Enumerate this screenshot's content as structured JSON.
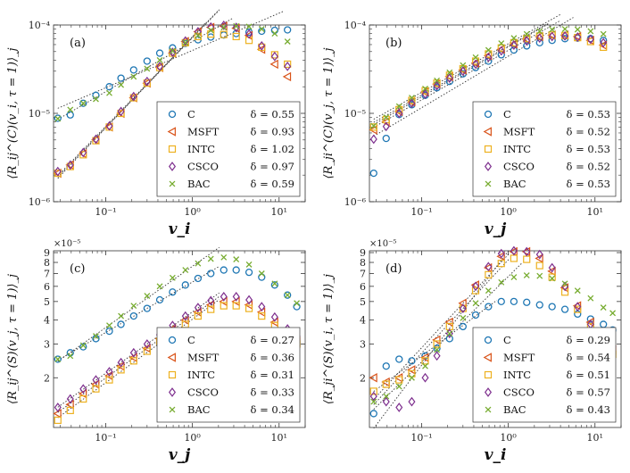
{
  "series_styles": [
    {
      "name": "C",
      "marker": "circle",
      "color": "#1f77b4"
    },
    {
      "name": "MSFT",
      "marker": "triangle-left",
      "color": "#d95319"
    },
    {
      "name": "INTC",
      "marker": "square",
      "color": "#edb120"
    },
    {
      "name": "CSCO",
      "marker": "diamond",
      "color": "#7e2f8e"
    },
    {
      "name": "BAC",
      "marker": "x",
      "color": "#77ac30"
    }
  ],
  "chart_data": [
    {
      "type": "scatter",
      "panel_label": "(a)",
      "xlabel": "v_i",
      "ylabel": "⟨R_ij^(C)(v_i, τ = 1)⟩_j",
      "xscale": "log",
      "yscale": "log",
      "xlim": [
        0.025,
        20
      ],
      "ylim": [
        1e-06,
        0.0001
      ],
      "x_ticks": [
        0.1,
        1,
        10
      ],
      "x_tick_labels": [
        "10⁻¹",
        "10⁰",
        "10¹"
      ],
      "y_ticks": [
        1e-06,
        1e-05,
        0.0001
      ],
      "y_tick_labels": [
        "10⁻⁶",
        "10⁻⁵",
        "10⁻⁴"
      ],
      "legend_position": "bottom-right",
      "exponent_label": "",
      "x": [
        0.028,
        0.039,
        0.055,
        0.077,
        0.11,
        0.15,
        0.21,
        0.3,
        0.42,
        0.59,
        0.83,
        1.16,
        1.63,
        2.3,
        3.2,
        4.5,
        6.3,
        8.9,
        12.5
      ],
      "series": [
        {
          "name": "C",
          "delta_label": "δ = 0.55",
          "values": [
            8.8e-06,
            9.6e-06,
            1.3e-05,
            1.6e-05,
            2e-05,
            2.5e-05,
            3.1e-05,
            3.9e-05,
            4.8e-05,
            5.5e-05,
            6.2e-05,
            6.8e-05,
            7.3e-05,
            7.7e-05,
            8e-05,
            8.3e-05,
            8.5e-05,
            8.7e-05,
            8.8e-05
          ]
        },
        {
          "name": "MSFT",
          "delta_label": "δ = 0.93",
          "values": [
            2.1e-06,
            2.6e-06,
            3.5e-06,
            5e-06,
            7e-06,
            1e-05,
            1.5e-05,
            2.2e-05,
            3.3e-05,
            4.8e-05,
            6.5e-05,
            8.4e-05,
            9.4e-05,
            9.7e-05,
            9.2e-05,
            7.6e-05,
            5.3e-05,
            3.6e-05,
            2.6e-05
          ]
        },
        {
          "name": "INTC",
          "delta_label": "δ = 1.02",
          "values": [
            2.1e-06,
            2.5e-06,
            3.4e-06,
            4.9e-06,
            7e-06,
            1e-05,
            1.5e-05,
            2.2e-05,
            3.3e-05,
            4.8e-05,
            6.3e-05,
            7.4e-05,
            7.9e-05,
            7.8e-05,
            7.4e-05,
            6.7e-05,
            5.6e-05,
            4.6e-05,
            3.6e-05
          ]
        },
        {
          "name": "CSCO",
          "delta_label": "δ = 0.97",
          "values": [
            2.2e-06,
            2.6e-06,
            3.6e-06,
            5.1e-06,
            7.2e-06,
            1.05e-05,
            1.55e-05,
            2.3e-05,
            3.4e-05,
            4.9e-05,
            6.6e-05,
            8.4e-05,
            9.5e-05,
            9.9e-05,
            9.4e-05,
            7.9e-05,
            5.8e-05,
            4.4e-05,
            3.4e-05
          ]
        },
        {
          "name": "BAC",
          "delta_label": "δ = 0.59",
          "values": [
            8.7e-06,
            1.1e-05,
            1.3e-05,
            1.45e-05,
            1.7e-05,
            2.1e-05,
            2.6e-05,
            3.2e-05,
            4e-05,
            5.1e-05,
            6.3e-05,
            7.6e-05,
            8.7e-05,
            9.4e-05,
            9.7e-05,
            9.6e-05,
            9e-05,
            8e-05,
            6.5e-05
          ]
        }
      ]
    },
    {
      "type": "scatter",
      "panel_label": "(b)",
      "xlabel": "v_j",
      "ylabel": "⟨R_ji^(C)(v_j, τ = 1)⟩_j",
      "xscale": "log",
      "yscale": "log",
      "xlim": [
        0.025,
        20
      ],
      "ylim": [
        1e-06,
        0.0001
      ],
      "x_ticks": [
        0.1,
        1,
        10
      ],
      "x_tick_labels": [
        "10⁻¹",
        "10⁰",
        "10¹"
      ],
      "y_ticks": [
        1e-06,
        1e-05,
        0.0001
      ],
      "y_tick_labels": [
        "10⁻⁶",
        "10⁻⁵",
        "10⁻⁴"
      ],
      "legend_position": "bottom-right",
      "exponent_label": "",
      "x": [
        0.028,
        0.039,
        0.055,
        0.077,
        0.11,
        0.15,
        0.21,
        0.3,
        0.42,
        0.59,
        0.83,
        1.16,
        1.63,
        2.3,
        3.2,
        4.5,
        6.3,
        8.9,
        12.5
      ],
      "series": [
        {
          "name": "C",
          "delta_label": "δ = 0.53",
          "values": [
            2.1e-06,
            5.2e-06,
            9.7e-06,
            1.25e-05,
            1.6e-05,
            1.95e-05,
            2.3e-05,
            2.8e-05,
            3.3e-05,
            3.9e-05,
            4.6e-05,
            5.2e-05,
            5.8e-05,
            6.3e-05,
            6.7e-05,
            7e-05,
            7.1e-05,
            7e-05,
            6.7e-05
          ]
        },
        {
          "name": "MSFT",
          "delta_label": "δ = 0.52",
          "values": [
            6.5e-06,
            8e-06,
            1.05e-05,
            1.35e-05,
            1.75e-05,
            2.15e-05,
            2.6e-05,
            3.1e-05,
            3.7e-05,
            4.5e-05,
            5.3e-05,
            6.1e-05,
            6.9e-05,
            7.4e-05,
            7.7e-05,
            7.7e-05,
            7.4e-05,
            6.7e-05,
            5.9e-05
          ]
        },
        {
          "name": "INTC",
          "delta_label": "δ = 0.53",
          "values": [
            7e-06,
            8.5e-06,
            1.1e-05,
            1.4e-05,
            1.8e-05,
            2.2e-05,
            2.7e-05,
            3.2e-05,
            3.9e-05,
            4.7e-05,
            5.5e-05,
            6.3e-05,
            7e-05,
            7.5e-05,
            7.7e-05,
            7.6e-05,
            7.2e-05,
            6.5e-05,
            5.6e-05
          ]
        },
        {
          "name": "CSCO",
          "delta_label": "δ = 0.52",
          "values": [
            5.1e-06,
            7.1e-06,
            1e-05,
            1.3e-05,
            1.65e-05,
            2.05e-05,
            2.5e-05,
            3e-05,
            3.6e-05,
            4.3e-05,
            5.1e-05,
            5.9e-05,
            6.6e-05,
            7.1e-05,
            7.4e-05,
            7.5e-05,
            7.3e-05,
            6.9e-05,
            6.3e-05
          ]
        },
        {
          "name": "BAC",
          "delta_label": "δ = 0.53",
          "values": [
            7.2e-06,
            9e-06,
            1.2e-05,
            1.5e-05,
            1.9e-05,
            2.35e-05,
            2.9e-05,
            3.5e-05,
            4.3e-05,
            5.2e-05,
            6.2e-05,
            7.1e-05,
            7.9e-05,
            8.5e-05,
            8.9e-05,
            9e-05,
            8.9e-05,
            8.5e-05,
            7.9e-05
          ]
        }
      ]
    },
    {
      "type": "scatter",
      "panel_label": "(c)",
      "xlabel": "v_j",
      "ylabel": "⟨R_ij^(S)(v_j, τ = 1)⟩_j",
      "xscale": "log",
      "yscale": "log",
      "xlim": [
        0.025,
        20
      ],
      "ylim": [
        1.1e-05,
        9.2e-05
      ],
      "x_ticks": [
        0.1,
        1,
        10
      ],
      "x_tick_labels": [
        "10⁻¹",
        "10⁰",
        "10¹"
      ],
      "y_ticks": [
        2e-05,
        3e-05,
        4e-05,
        5e-05,
        6e-05,
        7e-05,
        8e-05,
        9e-05
      ],
      "y_tick_labels": [
        "2",
        "3",
        "4",
        "5",
        "6",
        "7",
        "8",
        "9"
      ],
      "legend_position": "bottom-right",
      "exponent_label": "×10⁻⁵",
      "x": [
        0.028,
        0.039,
        0.055,
        0.077,
        0.11,
        0.15,
        0.21,
        0.3,
        0.42,
        0.59,
        0.83,
        1.16,
        1.63,
        2.3,
        3.2,
        4.5,
        6.3,
        8.9,
        12.5,
        16
      ],
      "series": [
        {
          "name": "C",
          "delta_label": "δ = 0.27",
          "values": [
            2.5e-05,
            2.7e-05,
            2.9e-05,
            3.2e-05,
            3.5e-05,
            3.8e-05,
            4.2e-05,
            4.6e-05,
            5.1e-05,
            5.6e-05,
            6.1e-05,
            6.6e-05,
            7e-05,
            7.3e-05,
            7.3e-05,
            7.1e-05,
            6.7e-05,
            6.1e-05,
            5.4e-05,
            4.7e-05
          ]
        },
        {
          "name": "MSFT",
          "delta_label": "δ = 0.36",
          "values": [
            1.3e-05,
            1.45e-05,
            1.65e-05,
            1.85e-05,
            2.05e-05,
            2.3e-05,
            2.55e-05,
            2.85e-05,
            3.2e-05,
            3.6e-05,
            4e-05,
            4.4e-05,
            4.8e-05,
            5e-05,
            5e-05,
            4.8e-05,
            4.4e-05,
            3.9e-05,
            3.4e-05,
            3.1e-05
          ]
        },
        {
          "name": "INTC",
          "delta_label": "δ = 0.31",
          "values": [
            1.2e-05,
            1.35e-05,
            1.55e-05,
            1.75e-05,
            1.95e-05,
            2.2e-05,
            2.45e-05,
            2.75e-05,
            3.1e-05,
            3.45e-05,
            3.8e-05,
            4.2e-05,
            4.55e-05,
            4.75e-05,
            4.75e-05,
            4.6e-05,
            4.2e-05,
            3.75e-05,
            3.3e-05,
            3e-05
          ]
        },
        {
          "name": "CSCO",
          "delta_label": "δ = 0.33",
          "values": [
            1.4e-05,
            1.55e-05,
            1.75e-05,
            1.95e-05,
            2.15e-05,
            2.4e-05,
            2.7e-05,
            3e-05,
            3.35e-05,
            3.75e-05,
            4.2e-05,
            4.65e-05,
            5.05e-05,
            5.3e-05,
            5.3e-05,
            5.1e-05,
            4.7e-05,
            4.15e-05,
            3.6e-05,
            3.3e-05
          ]
        },
        {
          "name": "BAC",
          "delta_label": "δ = 0.34",
          "values": [
            2.5e-05,
            2.6e-05,
            2.95e-05,
            3.3e-05,
            3.75e-05,
            4.2e-05,
            4.75e-05,
            5.35e-05,
            6e-05,
            6.65e-05,
            7.3e-05,
            7.9e-05,
            8.35e-05,
            8.5e-05,
            8.3e-05,
            7.8e-05,
            7e-05,
            6.2e-05,
            5.4e-05,
            4.9e-05
          ]
        }
      ]
    },
    {
      "type": "scatter",
      "panel_label": "(d)",
      "xlabel": "v_i",
      "ylabel": "⟨R_ji^(S)(v_i, τ = 1)⟩_j",
      "xscale": "log",
      "yscale": "log",
      "xlim": [
        0.025,
        20
      ],
      "ylim": [
        1.1e-05,
        9.2e-05
      ],
      "x_ticks": [
        0.1,
        1,
        10
      ],
      "x_tick_labels": [
        "10⁻¹",
        "10⁰",
        "10¹"
      ],
      "y_ticks": [
        2e-05,
        3e-05,
        4e-05,
        5e-05,
        6e-05,
        7e-05,
        8e-05,
        9e-05
      ],
      "y_tick_labels": [
        "2",
        "3",
        "4",
        "5",
        "6",
        "7",
        "8",
        "9"
      ],
      "legend_position": "bottom-right",
      "exponent_label": "×10⁻⁵",
      "x": [
        0.028,
        0.039,
        0.055,
        0.077,
        0.11,
        0.15,
        0.21,
        0.3,
        0.42,
        0.59,
        0.83,
        1.16,
        1.63,
        2.3,
        3.2,
        4.5,
        6.3,
        8.9,
        12.5,
        16
      ],
      "series": [
        {
          "name": "C",
          "delta_label": "δ = 0.29",
          "values": [
            1.3e-05,
            2.3e-05,
            2.5e-05,
            2.45e-05,
            2.6e-05,
            2.85e-05,
            3.2e-05,
            3.7e-05,
            4.25e-05,
            4.7e-05,
            5e-05,
            5e-05,
            4.95e-05,
            4.8e-05,
            4.7e-05,
            4.55e-05,
            4.3e-05,
            4.05e-05,
            3.8e-05,
            3.55e-05
          ]
        },
        {
          "name": "MSFT",
          "delta_label": "δ = 0.54",
          "values": [
            2e-05,
            1.9e-05,
            2e-05,
            2.2e-05,
            2.55e-05,
            3.15e-05,
            3.9e-05,
            4.9e-05,
            6.1e-05,
            7.5e-05,
            8.6e-05,
            9.1e-05,
            9.1e-05,
            8.4e-05,
            7.2e-05,
            5.9e-05,
            4.75e-05,
            3.9e-05,
            3.2e-05,
            2.8e-05
          ]
        },
        {
          "name": "INTC",
          "delta_label": "δ = 0.51",
          "values": [
            1.7e-05,
            1.85e-05,
            1.95e-05,
            2.1e-05,
            2.45e-05,
            3e-05,
            3.7e-05,
            4.6e-05,
            5.7e-05,
            6.9e-05,
            7.9e-05,
            8.4e-05,
            8.3e-05,
            7.7e-05,
            6.7e-05,
            5.6e-05,
            4.55e-05,
            3.7e-05,
            3.05e-05,
            2.65e-05
          ]
        },
        {
          "name": "CSCO",
          "delta_label": "δ = 0.57",
          "values": [
            1.6e-05,
            1.5e-05,
            1.4e-05,
            1.5e-05,
            2e-05,
            2.6e-05,
            3.4e-05,
            4.6e-05,
            6e-05,
            7.6e-05,
            8.9e-05,
            9.2e-05,
            9.1e-05,
            8.8e-05,
            7.5e-05,
            6e-05,
            4.7e-05,
            3.8e-05,
            3.2e-05,
            2.9e-05
          ]
        },
        {
          "name": "BAC",
          "delta_label": "δ = 0.43",
          "values": [
            1.5e-05,
            1.6e-05,
            1.8e-05,
            2e-05,
            2.3e-05,
            2.8e-05,
            3.4e-05,
            4.1e-05,
            4.9e-05,
            5.7e-05,
            6.3e-05,
            6.7e-05,
            6.85e-05,
            6.8e-05,
            6.6e-05,
            6.2e-05,
            5.7e-05,
            5.2e-05,
            4.65e-05,
            4.35e-05
          ]
        }
      ]
    }
  ]
}
